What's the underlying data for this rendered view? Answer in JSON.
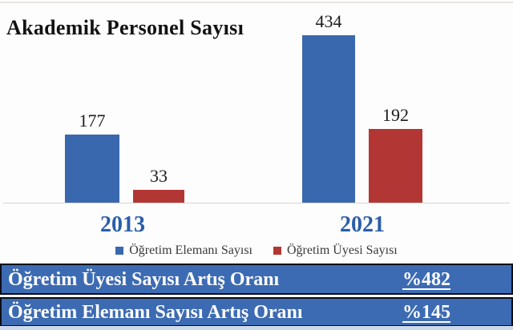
{
  "chart_data": {
    "type": "bar",
    "title": "Akademik Personel Sayısı",
    "categories": [
      "2013",
      "2021"
    ],
    "series": [
      {
        "name": "Öğretim Elemanı Sayısı",
        "values": [
          177,
          434
        ],
        "color": "#3A68AE"
      },
      {
        "name": "Öğretim Üyesi Sayısı",
        "values": [
          33,
          192
        ],
        "color": "#B23734"
      }
    ],
    "value_labels": [
      [
        "177",
        "434"
      ],
      [
        "33",
        "192"
      ]
    ],
    "xlabel": "",
    "ylabel": "",
    "ylim": [
      0,
      460
    ],
    "grid": false,
    "legend_position": "bottom",
    "category_label_color": "#2B5DA9"
  },
  "summary_rows": [
    {
      "label": "Öğretim Üyesi Sayısı Artış Oranı",
      "value": "%482"
    },
    {
      "label": "Öğretim Elemanı Sayısı Artış Oranı",
      "value": "%145"
    }
  ],
  "colors": {
    "bar_blue": "#3A68AE",
    "bar_red": "#B23734",
    "banner_bg": "#3D6BB3",
    "banner_border": "#0D0D16",
    "banner_text": "#FFFFFF",
    "category_label": "#2B5DA9",
    "title_text": "#121212",
    "legend_text": "#3A3A3A",
    "axis_line": "#D9D4D2"
  }
}
